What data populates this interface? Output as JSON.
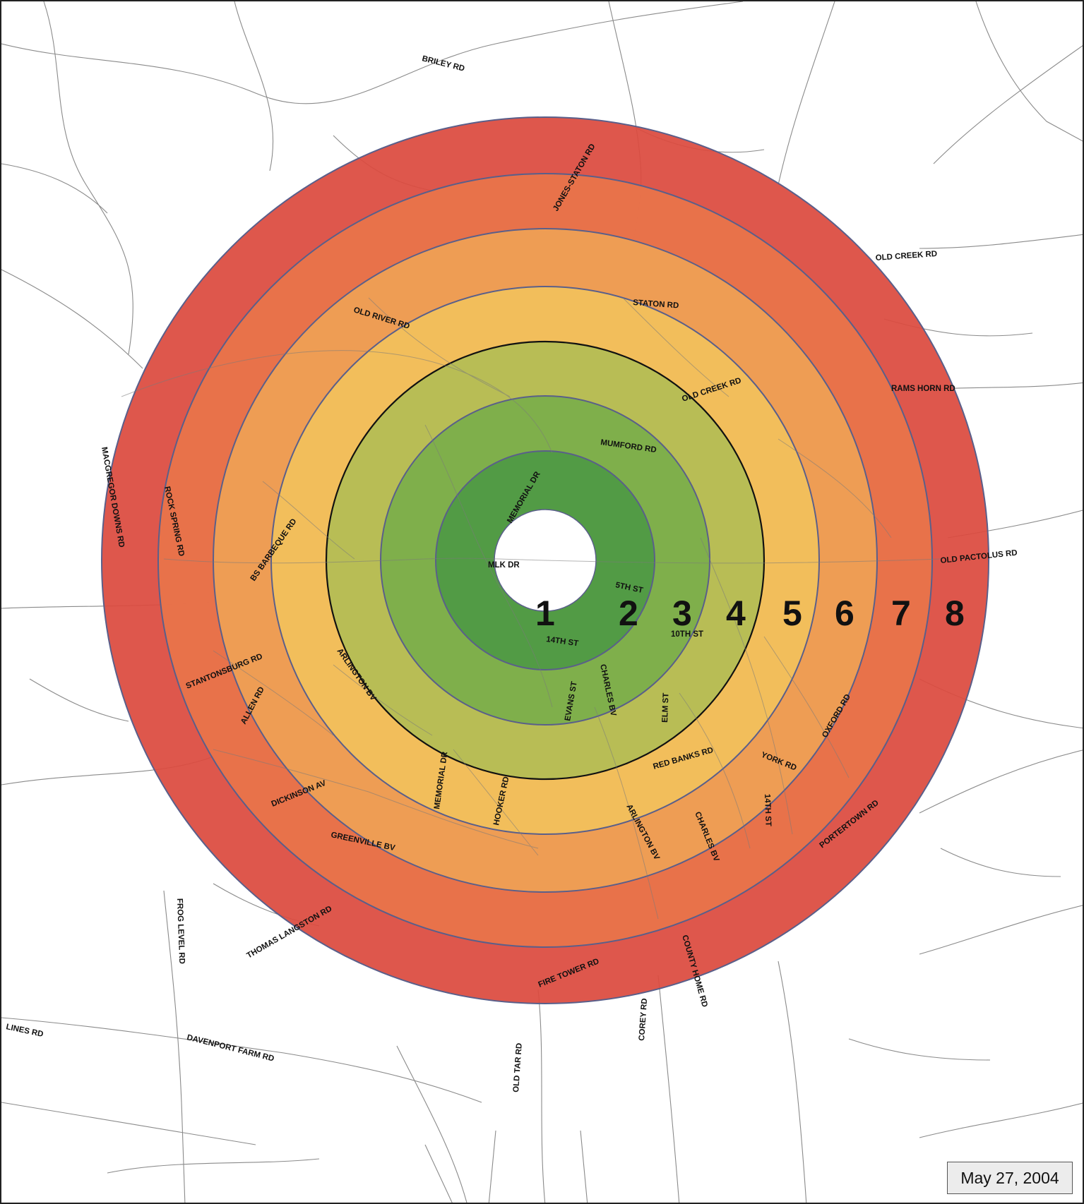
{
  "map": {
    "zones": [
      {
        "label": "1",
        "color": "#ffffff"
      },
      {
        "label": "2",
        "color": "#4f9a45"
      },
      {
        "label": "3",
        "color": "#7bad4a"
      },
      {
        "label": "4",
        "color": "#b4bc55"
      },
      {
        "label": "5",
        "color": "#f2c15b"
      },
      {
        "label": "6",
        "color": "#eea055"
      },
      {
        "label": "7",
        "color": "#e8744a"
      },
      {
        "label": "8",
        "color": "#dc4a3e"
      }
    ],
    "roads": [
      "BRILEY RD",
      "JONES-STATON RD",
      "OLD CREEK RD",
      "STATON RD",
      "OLD RIVER RD",
      "OLD CREEK RD",
      "RAMS HORN RD",
      "MUMFORD RD",
      "MEMORIAL DR",
      "MACGREGOR DOWNS RD",
      "ROCK SPRING RD",
      "BS BARBEQUE RD",
      "OLD PACTOLUS RD",
      "MLK DR",
      "5TH ST",
      "14TH ST",
      "10TH ST",
      "STANTONSBURG RD",
      "ARLINGTON BV",
      "ALLEN RD",
      "EVANS ST",
      "CHARLES BV",
      "ELM ST",
      "OXFORD RD",
      "RED BANKS RD",
      "YORK RD",
      "MEMORIAL DR",
      "HOOKER RD",
      "DICKINSON AV",
      "ARLINGTON BV",
      "CHARLES BV",
      "14TH ST",
      "PORTERTOWN RD",
      "GREENVILLE BV",
      "THOMAS LANGSTON RD",
      "FROG LEVEL RD",
      "FIRE TOWER RD",
      "COUNTY HOME RD",
      "COREY RD",
      "LINES RD",
      "DAVENPORT FARM RD",
      "OLD TAR RD"
    ],
    "date": "May 27, 2004"
  }
}
